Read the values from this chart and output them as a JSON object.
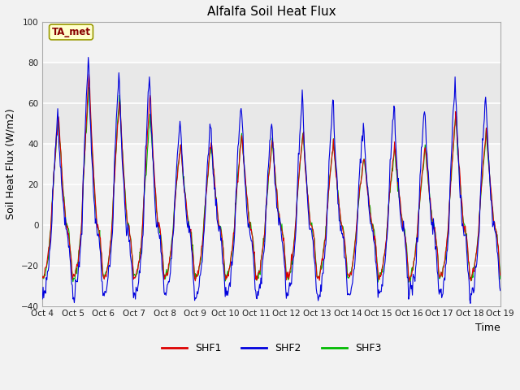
{
  "title": "Alfalfa Soil Heat Flux",
  "ylabel": "Soil Heat Flux (W/m2)",
  "xlabel": "Time",
  "ylim": [
    -40,
    100
  ],
  "yticks": [
    -40,
    -20,
    0,
    20,
    40,
    60,
    80,
    100
  ],
  "background_color": "#f2f2f2",
  "plot_bg_color": "#f2f2f2",
  "shf1_color": "#dd0000",
  "shf2_color": "#0000dd",
  "shf3_color": "#00bb00",
  "grid_color": "#cccccc",
  "annotation_text": "TA_met",
  "annotation_box_color": "#ffffcc",
  "annotation_border_color": "#999900",
  "annotation_text_color": "#880000",
  "num_days": 15,
  "start_day": 4,
  "shf2_peak_amplitudes": [
    56,
    85,
    77,
    75,
    55,
    51,
    63,
    53,
    65,
    65,
    54,
    61,
    62,
    74,
    67
  ],
  "shf1_peak_amplitudes": [
    55,
    76,
    64,
    65,
    40,
    43,
    45,
    43,
    46,
    42,
    35,
    40,
    40,
    57,
    49
  ],
  "shf3_peak_amplitudes": [
    54,
    70,
    65,
    55,
    41,
    41,
    46,
    42,
    46,
    42,
    35,
    38,
    39,
    55,
    46
  ],
  "night_min_shf2": -35,
  "night_min_shf13": -26
}
